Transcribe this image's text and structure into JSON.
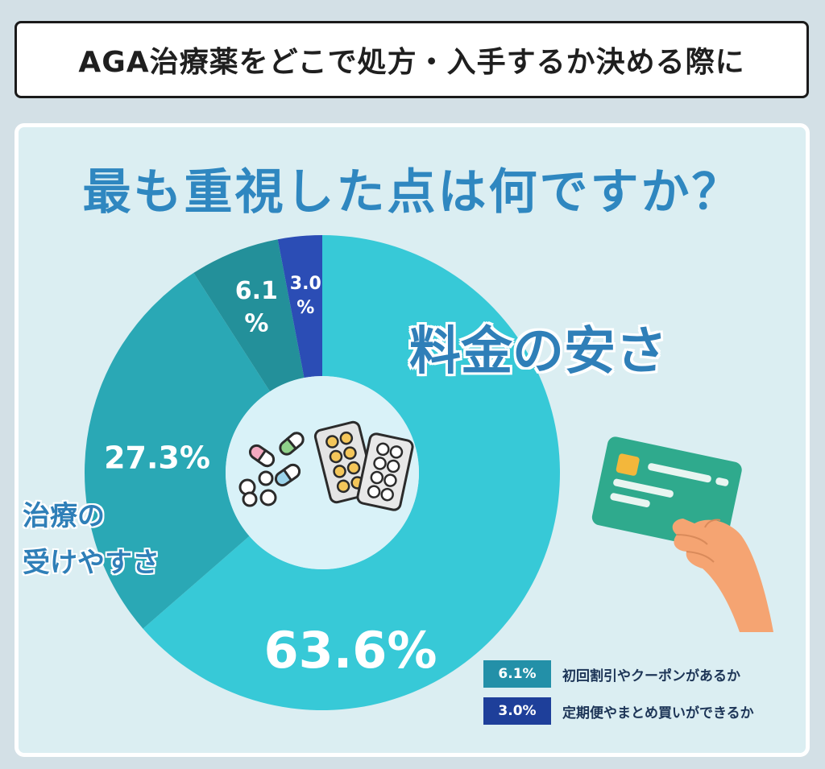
{
  "header": {
    "title": "AGA治療薬をどこで処方・入手するか決める際に"
  },
  "question": "最も重視した点は何ですか？",
  "chart_data": {
    "type": "pie",
    "style": "donut",
    "start": "12 o'clock, clockwise",
    "slices": [
      {
        "label": "料金の安さ",
        "value": 63.6,
        "display": "63.6%",
        "color": "#37c9d7"
      },
      {
        "label": "治療の受けやすさ",
        "value": 27.3,
        "display": "27.3%",
        "color": "#2aa8b5"
      },
      {
        "label": "初回割引やクーポンがあるか",
        "value": 6.1,
        "display_lines": [
          "6.1",
          "%"
        ],
        "color": "#23909a"
      },
      {
        "label": "定期便やまとめ買いができるか",
        "value": 3.0,
        "display_lines": [
          "3.0",
          "%"
        ],
        "color": "#2b4db5"
      }
    ],
    "inline_labels": {
      "large": "料金の安さ",
      "medium_lines": [
        "治療の",
        "受けやすさ"
      ]
    },
    "legend": [
      {
        "value": "6.1%",
        "text": "初回割引やクーポンがあるか",
        "color": "#2390a8"
      },
      {
        "value": "3.0%",
        "text": "定期便やまとめ買いができるか",
        "color": "#1e3f9a"
      }
    ],
    "legend_position": "bottom-right"
  },
  "icons": [
    "pills-icon",
    "blister-pack-icon",
    "credit-card-hand-icon"
  ]
}
